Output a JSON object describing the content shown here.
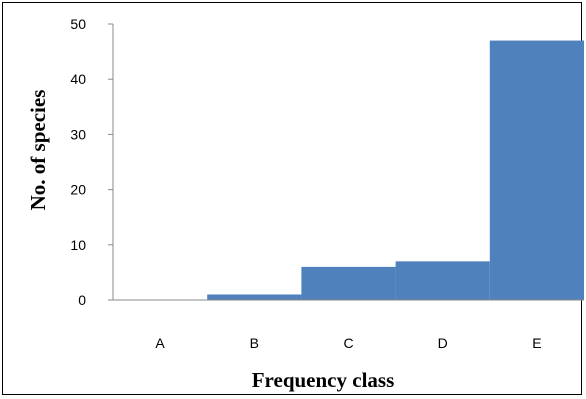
{
  "chart_data": {
    "type": "bar",
    "categories": [
      "A",
      "B",
      "C",
      "D",
      "E"
    ],
    "values": [
      0,
      1,
      6,
      7,
      47
    ],
    "xlabel": "Frequency class",
    "ylabel": "No. of species",
    "ylim": [
      0,
      50
    ],
    "yticks": [
      0,
      10,
      20,
      30,
      40,
      50
    ],
    "grid": false,
    "bar_color": "#4f81bd"
  }
}
